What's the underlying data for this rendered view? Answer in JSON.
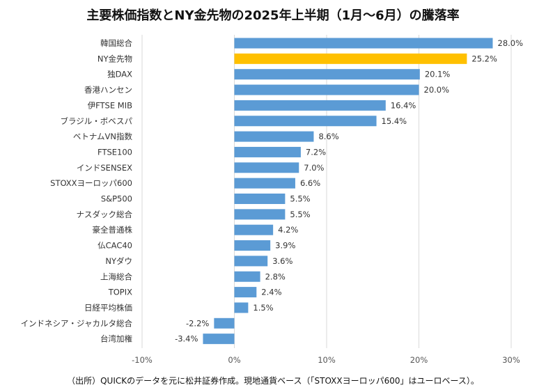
{
  "title": "主要株価指数とNY金先物の2025年上半期（1月～6月）の騰落率",
  "source": "（出所）QUICKのデータを元に松井証券作成。現地通貨ベース（「STOXXヨーロッパ600」はユーロベース）。",
  "colors": {
    "bar": "#5b9bd5",
    "highlight": "#ffc000",
    "grid": "#d9d9d9"
  },
  "chart_data": {
    "type": "bar",
    "orientation": "horizontal",
    "categories": [
      "韓国総合",
      "NY金先物",
      "独DAX",
      "香港ハンセン",
      "伊FTSE MIB",
      "ブラジル・ボベスパ",
      "ベトナムVN指数",
      "FTSE100",
      "インドSENSEX",
      "STOXXヨーロッパ600",
      "S&P500",
      "ナスダック総合",
      "豪全普通株",
      "仏CAC40",
      "NYダウ",
      "上海総合",
      "TOPIX",
      "日経平均株価",
      "インドネシア・ジャカルタ総合",
      "台湾加権"
    ],
    "values": [
      28.0,
      25.2,
      20.1,
      20.0,
      16.4,
      15.4,
      8.6,
      7.2,
      7.0,
      6.6,
      5.5,
      5.5,
      4.2,
      3.9,
      3.6,
      2.8,
      2.4,
      1.5,
      -2.2,
      -3.4
    ],
    "data_labels": [
      "28.0%",
      "25.2%",
      "20.1%",
      "20.0%",
      "16.4%",
      "15.4%",
      "8.6%",
      "7.2%",
      "7.0%",
      "6.6%",
      "5.5%",
      "5.5%",
      "4.2%",
      "3.9%",
      "3.6%",
      "2.8%",
      "2.4%",
      "1.5%",
      "-2.2%",
      "-3.4%"
    ],
    "highlight_category": "NY金先物",
    "xlim": [
      -10,
      30
    ],
    "xticks": [
      -10,
      0,
      10,
      20,
      30
    ],
    "xtick_labels": [
      "-10%",
      "0%",
      "10%",
      "20%",
      "30%"
    ],
    "grid": "vertical",
    "legend": "none"
  }
}
